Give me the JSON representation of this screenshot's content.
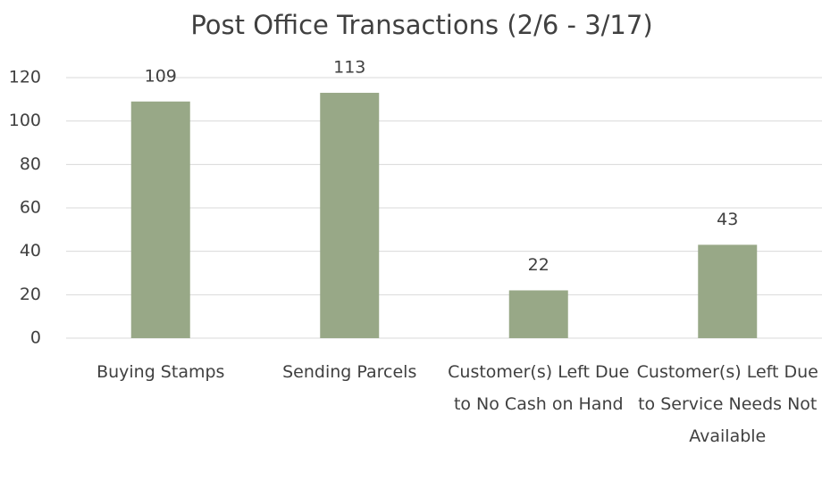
{
  "chart_data": {
    "type": "bar",
    "title": "Post Office Transactions (2/6 - 3/17)",
    "categories": [
      "Buying Stamps",
      "Sending Parcels",
      "Customer(s) Left Due to No Cash on Hand",
      "Customer(s) Left Due to Service Needs Not Available"
    ],
    "values": [
      109,
      113,
      22,
      43
    ],
    "color": "#98a887",
    "ylim": [
      0,
      120
    ],
    "yticks": [
      0,
      20,
      40,
      60,
      80,
      100,
      120
    ],
    "grid": true
  }
}
